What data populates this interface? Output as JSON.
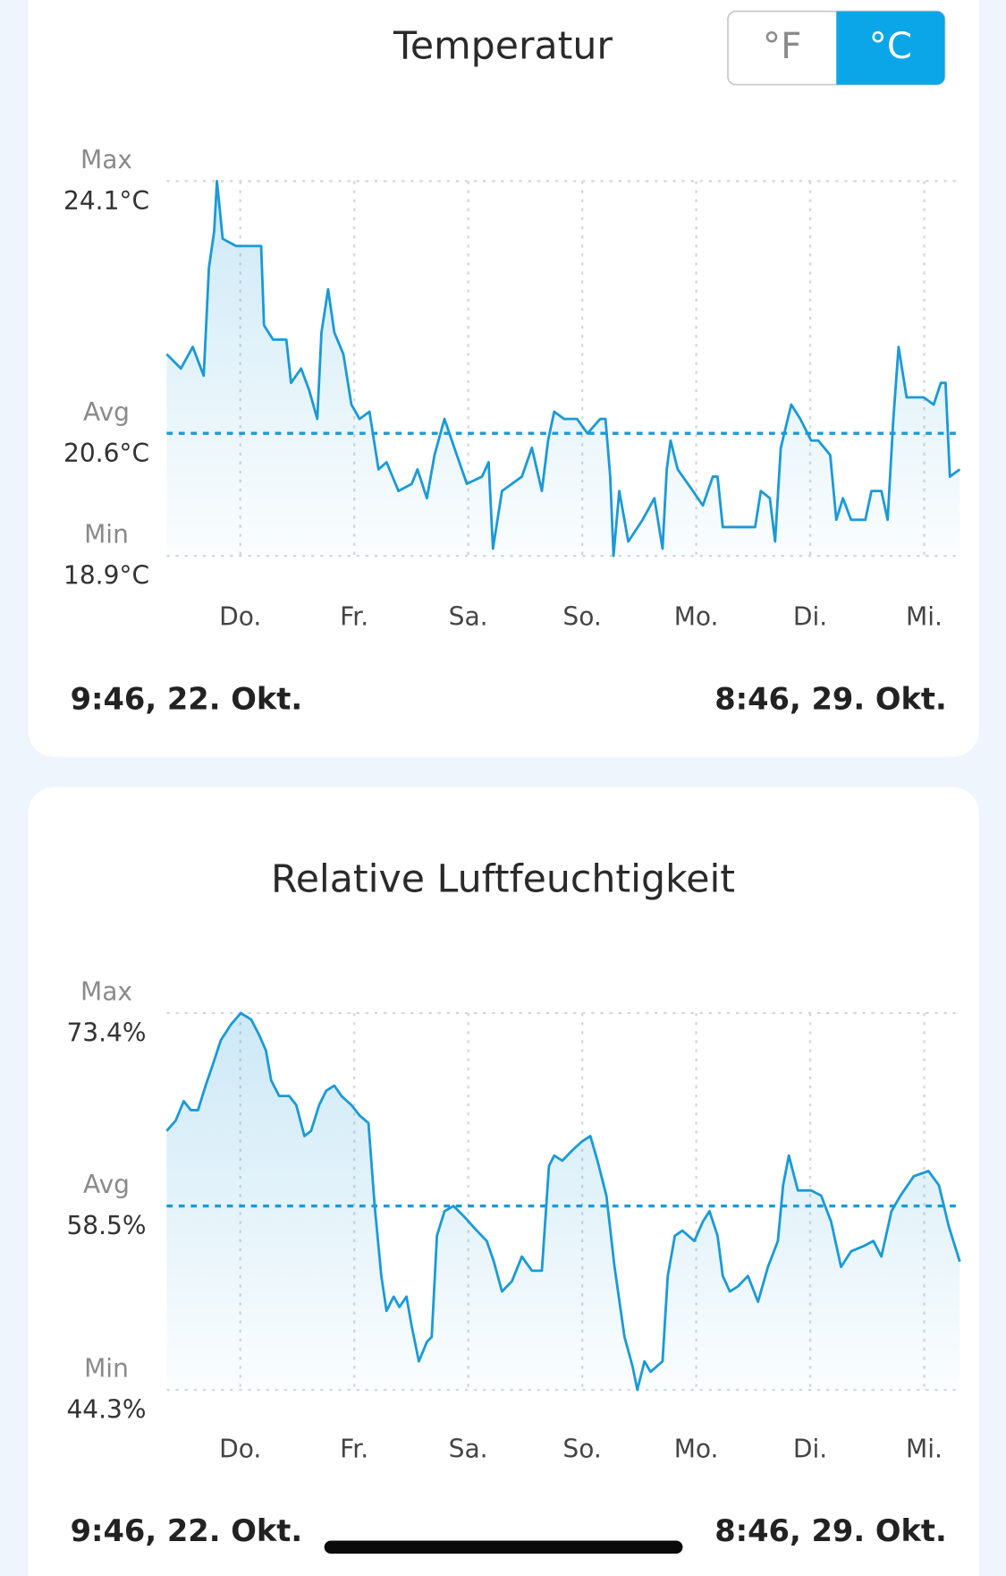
{
  "unit_toggle": {
    "options": [
      "°F",
      "°C"
    ],
    "selected": 1
  },
  "chart_data": [
    {
      "type": "line",
      "title": "Temperatur",
      "color": "#1a9ad6",
      "area_fill": true,
      "ytick_names": [
        "Max",
        "Avg",
        "Min"
      ],
      "ylim": [
        18.9,
        24.1
      ],
      "yticks": [
        {
          "value": 24.1,
          "label": "24.1°C"
        },
        {
          "value": 20.6,
          "label": "20.6°C"
        },
        {
          "value": 18.9,
          "label": "18.9°C"
        }
      ],
      "xlim": [
        0,
        167
      ],
      "xticks": [
        {
          "value": 15.5,
          "label": "Do."
        },
        {
          "value": 39.5,
          "label": "Fr."
        },
        {
          "value": 63.5,
          "label": "Sa."
        },
        {
          "value": 87.5,
          "label": "So."
        },
        {
          "value": 111.5,
          "label": "Mo."
        },
        {
          "value": 135.5,
          "label": "Di."
        },
        {
          "value": 159.5,
          "label": "Mi."
        }
      ],
      "range_labels": [
        "9:46,  22. Okt.",
        "8:46,  29. Okt."
      ],
      "x": [
        0.0,
        3.0,
        5.5,
        7.8,
        8.9,
        10.0,
        10.6,
        11.8,
        14.6,
        17.8,
        19.9,
        20.5,
        22.4,
        25.2,
        26.2,
        28.3,
        30.0,
        31.7,
        32.6,
        34.0,
        35.3,
        37.2,
        38.9,
        40.6,
        42.7,
        44.6,
        46.3,
        48.8,
        51.6,
        52.8,
        54.8,
        56.4,
        58.5,
        61.1,
        63.2,
        66.4,
        67.8,
        68.7,
        70.6,
        72.7,
        74.8,
        76.9,
        79.0,
        80.3,
        81.6,
        83.7,
        86.4,
        88.6,
        91.3,
        92.4,
        93.4,
        94.1,
        95.3,
        97.2,
        100.2,
        102.7,
        104.4,
        105.3,
        106.1,
        107.6,
        110.8,
        112.9,
        115.0,
        116.0,
        117.1,
        120.3,
        123.9,
        125.1,
        127.0,
        128.1,
        129.3,
        131.5,
        133.4,
        135.7,
        137.2,
        139.7,
        141.0,
        142.4,
        144.1,
        147.1,
        148.4,
        150.5,
        151.8,
        153.0,
        154.1,
        155.8,
        159.4,
        161.5,
        163.0,
        164.0,
        164.9,
        167.0
      ],
      "values": [
        21.7,
        21.5,
        21.8,
        21.4,
        22.9,
        23.4,
        24.1,
        23.3,
        23.2,
        23.2,
        23.2,
        22.1,
        21.9,
        21.9,
        21.3,
        21.5,
        21.2,
        20.8,
        22.0,
        22.6,
        22.0,
        21.7,
        21.0,
        20.8,
        20.9,
        20.1,
        20.2,
        19.8,
        19.9,
        20.1,
        19.7,
        20.3,
        20.8,
        20.3,
        19.9,
        20.0,
        20.2,
        19.0,
        19.8,
        19.9,
        20.0,
        20.4,
        19.8,
        20.5,
        20.9,
        20.8,
        20.8,
        20.6,
        20.8,
        20.8,
        20.0,
        18.9,
        19.8,
        19.1,
        19.4,
        19.7,
        19.0,
        20.1,
        20.5,
        20.1,
        19.8,
        19.6,
        20.0,
        20.0,
        19.3,
        19.3,
        19.3,
        19.8,
        19.7,
        19.1,
        20.4,
        21.0,
        20.8,
        20.5,
        20.5,
        20.3,
        19.4,
        19.7,
        19.4,
        19.4,
        19.8,
        19.8,
        19.4,
        20.8,
        21.8,
        21.1,
        21.1,
        21.0,
        21.3,
        21.3,
        20.0,
        20.1
      ]
    },
    {
      "type": "line",
      "title": "Relative Luftfeuchtigkeit",
      "color": "#1a9ad6",
      "area_fill": true,
      "ytick_names": [
        "Max",
        "Avg",
        "Min"
      ],
      "ylim": [
        44.3,
        73.4
      ],
      "yticks": [
        {
          "value": 73.4,
          "label": "73.4%"
        },
        {
          "value": 58.5,
          "label": "58.5%"
        },
        {
          "value": 44.3,
          "label": "44.3%"
        }
      ],
      "xlim": [
        0,
        167
      ],
      "xticks": [
        {
          "value": 15.5,
          "label": "Do."
        },
        {
          "value": 39.5,
          "label": "Fr."
        },
        {
          "value": 63.5,
          "label": "Sa."
        },
        {
          "value": 87.5,
          "label": "So."
        },
        {
          "value": 111.5,
          "label": "Mo."
        },
        {
          "value": 135.5,
          "label": "Di."
        },
        {
          "value": 159.5,
          "label": "Mi."
        }
      ],
      "range_labels": [
        "9:46,  22. Okt.",
        "8:46,  29. Okt."
      ],
      "x": [
        0.0,
        1.9,
        3.6,
        5.1,
        6.6,
        8.2,
        9.7,
        11.4,
        13.5,
        15.6,
        17.8,
        19.5,
        20.9,
        22.0,
        23.7,
        25.8,
        27.3,
        29.0,
        30.4,
        32.1,
        33.6,
        35.3,
        36.8,
        38.9,
        40.6,
        42.5,
        43.8,
        45.2,
        46.3,
        47.8,
        49.0,
        50.5,
        51.6,
        53.1,
        54.8,
        55.8,
        56.9,
        58.5,
        60.4,
        62.6,
        65.3,
        67.4,
        68.9,
        70.6,
        72.7,
        74.8,
        76.9,
        79.0,
        80.5,
        81.6,
        83.3,
        85.4,
        87.5,
        89.2,
        90.7,
        92.6,
        94.3,
        96.4,
        98.1,
        99.1,
        100.6,
        101.9,
        104.4,
        105.5,
        107.0,
        108.6,
        111.1,
        112.9,
        114.3,
        116.0,
        117.1,
        118.6,
        120.3,
        122.4,
        124.5,
        126.6,
        128.7,
        129.8,
        131.0,
        132.9,
        135.7,
        137.8,
        139.9,
        142.0,
        144.1,
        146.7,
        148.8,
        150.5,
        152.6,
        154.5,
        157.3,
        160.4,
        162.6,
        164.7,
        167.0
      ],
      "values": [
        64.3,
        65.1,
        66.6,
        65.9,
        65.9,
        67.8,
        69.4,
        71.3,
        72.5,
        73.4,
        72.9,
        71.7,
        70.5,
        68.2,
        67.0,
        67.0,
        66.3,
        63.9,
        64.3,
        66.3,
        67.4,
        67.8,
        67.0,
        66.3,
        65.5,
        64.9,
        58.5,
        53.1,
        50.4,
        51.5,
        50.7,
        51.5,
        49.2,
        46.5,
        48.0,
        48.4,
        56.2,
        58.1,
        58.5,
        57.7,
        56.6,
        55.8,
        54.2,
        51.9,
        52.7,
        54.6,
        53.5,
        53.5,
        61.6,
        62.4,
        62.0,
        62.8,
        63.5,
        63.9,
        62.0,
        59.3,
        53.8,
        48.4,
        46.1,
        44.3,
        46.5,
        45.7,
        46.5,
        53.1,
        56.2,
        56.6,
        55.8,
        57.3,
        58.1,
        56.2,
        53.1,
        51.9,
        52.3,
        53.1,
        51.1,
        53.8,
        55.8,
        60.1,
        62.4,
        59.7,
        59.7,
        59.3,
        57.3,
        53.8,
        55.0,
        55.4,
        55.8,
        54.6,
        58.1,
        59.3,
        60.8,
        61.2,
        60.1,
        56.9,
        54.2
      ]
    }
  ]
}
